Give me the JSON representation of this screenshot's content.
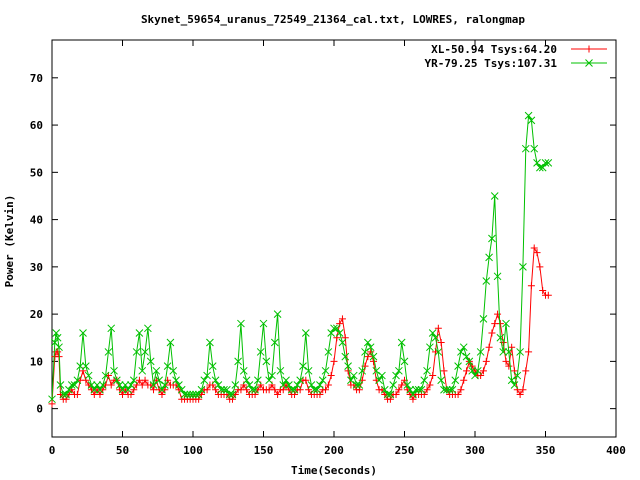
{
  "chart_data": {
    "type": "line",
    "title": "Skynet_59654_uranus_72549_21364_cal.txt, LOWRES, ralongmap",
    "xlabel": "Time(Seconds)",
    "ylabel": "Power (Kelvin)",
    "xlim": [
      0,
      400
    ],
    "ylim": [
      -6,
      78
    ],
    "x_ticks": [
      0,
      50,
      100,
      150,
      200,
      250,
      300,
      350,
      400
    ],
    "y_ticks": [
      0,
      10,
      20,
      30,
      40,
      50,
      60,
      70
    ],
    "grid": false,
    "legend_position": "top-right",
    "series": [
      {
        "name": "XL-50.94 Tsys:64.20",
        "color": "#ff0000",
        "marker": "plus",
        "x": [
          0,
          2,
          3,
          4,
          5,
          6,
          8,
          10,
          12,
          14,
          16,
          18,
          20,
          22,
          24,
          26,
          28,
          30,
          32,
          34,
          36,
          38,
          40,
          42,
          44,
          46,
          48,
          50,
          52,
          54,
          56,
          58,
          60,
          62,
          64,
          66,
          68,
          70,
          72,
          74,
          76,
          78,
          80,
          82,
          84,
          86,
          88,
          90,
          92,
          94,
          96,
          98,
          100,
          102,
          104,
          106,
          108,
          110,
          112,
          114,
          116,
          118,
          120,
          122,
          124,
          126,
          128,
          130,
          132,
          134,
          136,
          138,
          140,
          142,
          144,
          146,
          148,
          150,
          152,
          154,
          156,
          158,
          160,
          162,
          164,
          166,
          168,
          170,
          172,
          174,
          176,
          178,
          180,
          182,
          184,
          186,
          188,
          190,
          192,
          194,
          196,
          198,
          200,
          202,
          204,
          206,
          208,
          210,
          212,
          214,
          216,
          218,
          220,
          222,
          224,
          226,
          228,
          230,
          232,
          234,
          236,
          238,
          240,
          242,
          244,
          246,
          248,
          250,
          252,
          254,
          256,
          258,
          260,
          262,
          264,
          266,
          268,
          270,
          272,
          274,
          276,
          278,
          280,
          282,
          284,
          286,
          288,
          290,
          292,
          294,
          296,
          298,
          300,
          302,
          304,
          306,
          308,
          310,
          312,
          314,
          316,
          318,
          320,
          322,
          324,
          326,
          328,
          330,
          332,
          334,
          336,
          338,
          340,
          342,
          344,
          346,
          348,
          350,
          352
        ],
        "values": [
          1,
          11,
          12,
          12,
          11,
          3,
          2,
          2,
          3,
          4,
          3,
          3,
          6,
          8,
          6,
          5,
          4,
          3,
          4,
          3,
          4,
          5,
          7,
          5,
          6,
          6,
          4,
          3,
          4,
          3,
          3,
          4,
          5,
          6,
          5,
          6,
          5,
          5,
          4,
          6,
          4,
          3,
          4,
          6,
          5,
          5,
          5,
          4,
          2,
          2,
          2,
          2,
          2,
          2,
          2,
          3,
          4,
          4,
          5,
          5,
          4,
          3,
          3,
          3,
          3,
          2,
          2,
          3,
          4,
          4,
          5,
          4,
          3,
          3,
          3,
          4,
          5,
          4,
          4,
          4,
          5,
          4,
          3,
          4,
          4,
          5,
          4,
          3,
          3,
          4,
          4,
          6,
          6,
          4,
          3,
          3,
          3,
          3,
          4,
          4,
          5,
          7,
          10,
          15,
          18,
          19,
          15,
          8,
          5,
          5,
          4,
          4,
          6,
          9,
          11,
          12,
          10,
          6,
          4,
          4,
          3,
          2,
          2,
          3,
          3,
          4,
          5,
          6,
          4,
          3,
          2,
          3,
          3,
          3,
          3,
          4,
          5,
          7,
          12,
          17,
          14,
          8,
          4,
          3,
          3,
          3,
          3,
          4,
          6,
          8,
          10,
          9,
          8,
          7,
          7,
          8,
          10,
          13,
          16,
          18,
          20,
          18,
          14,
          10,
          9,
          13,
          8,
          4,
          3,
          4,
          8,
          12,
          26,
          34,
          33,
          30,
          25,
          24,
          24
        ]
      },
      {
        "name": "YR-79.25 Tsys:107.31",
        "color": "#00c000",
        "marker": "cross",
        "x": [
          0,
          2,
          3,
          4,
          5,
          6,
          8,
          10,
          12,
          14,
          16,
          18,
          20,
          22,
          24,
          26,
          28,
          30,
          32,
          34,
          36,
          38,
          40,
          42,
          44,
          46,
          48,
          50,
          52,
          54,
          56,
          58,
          60,
          62,
          64,
          66,
          68,
          70,
          72,
          74,
          76,
          78,
          80,
          82,
          84,
          86,
          88,
          90,
          92,
          94,
          96,
          98,
          100,
          102,
          104,
          106,
          108,
          110,
          112,
          114,
          116,
          118,
          120,
          122,
          124,
          126,
          128,
          130,
          132,
          134,
          136,
          138,
          140,
          142,
          144,
          146,
          148,
          150,
          152,
          154,
          156,
          158,
          160,
          162,
          164,
          166,
          168,
          170,
          172,
          174,
          176,
          178,
          180,
          182,
          184,
          186,
          188,
          190,
          192,
          194,
          196,
          198,
          200,
          202,
          204,
          206,
          208,
          210,
          212,
          214,
          216,
          218,
          220,
          222,
          224,
          226,
          228,
          230,
          232,
          234,
          236,
          238,
          240,
          242,
          244,
          246,
          248,
          250,
          252,
          254,
          256,
          258,
          260,
          262,
          264,
          266,
          268,
          270,
          272,
          274,
          276,
          278,
          280,
          282,
          284,
          286,
          288,
          290,
          292,
          294,
          296,
          298,
          300,
          302,
          304,
          306,
          308,
          310,
          312,
          314,
          316,
          318,
          320,
          322,
          324,
          326,
          328,
          330,
          332,
          334,
          336,
          338,
          340,
          342,
          344,
          346,
          348,
          350,
          352
        ],
        "values": [
          2,
          14,
          16,
          15,
          13,
          5,
          3,
          3,
          4,
          5,
          5,
          6,
          9,
          16,
          9,
          7,
          5,
          4,
          5,
          4,
          5,
          7,
          12,
          17,
          8,
          6,
          5,
          4,
          5,
          4,
          5,
          6,
          12,
          16,
          8,
          12,
          17,
          10,
          5,
          8,
          6,
          4,
          5,
          9,
          14,
          8,
          6,
          5,
          4,
          3,
          3,
          3,
          3,
          3,
          3,
          4,
          6,
          7,
          14,
          9,
          6,
          5,
          4,
          4,
          4,
          3,
          3,
          5,
          10,
          18,
          8,
          6,
          5,
          4,
          4,
          6,
          12,
          18,
          10,
          6,
          7,
          14,
          20,
          8,
          5,
          6,
          5,
          4,
          4,
          5,
          6,
          9,
          16,
          8,
          5,
          4,
          4,
          5,
          6,
          8,
          12,
          16,
          17,
          17,
          16,
          14,
          11,
          9,
          6,
          7,
          5,
          5,
          8,
          12,
          14,
          13,
          11,
          8,
          6,
          7,
          4,
          3,
          3,
          5,
          7,
          8,
          14,
          10,
          5,
          4,
          3,
          4,
          4,
          4,
          6,
          8,
          13,
          16,
          15,
          12,
          6,
          4,
          4,
          4,
          4,
          6,
          9,
          12,
          13,
          11,
          10,
          8,
          7,
          8,
          12,
          19,
          27,
          32,
          36,
          45,
          28,
          15,
          12,
          18,
          12,
          6,
          5,
          7,
          12,
          30,
          55,
          62,
          61,
          55,
          52,
          51,
          51,
          52,
          52
        ]
      }
    ]
  }
}
